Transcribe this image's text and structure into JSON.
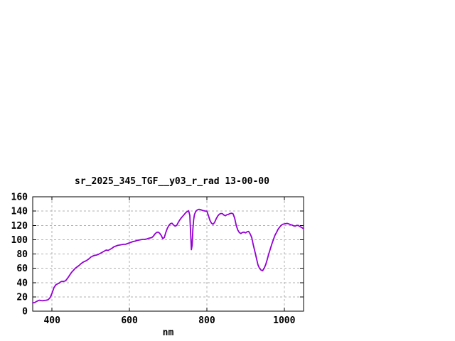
{
  "window": {
    "background": "#ffffff"
  },
  "chart_data": {
    "type": "line",
    "title": "sr_2025_345_TGF__y03_r_rad 13-00-00",
    "xlabel": "nm",
    "ylabel": "",
    "xlim": [
      350,
      1050
    ],
    "ylim": [
      0,
      160
    ],
    "xticks": [
      400,
      600,
      800,
      1000
    ],
    "yticks": [
      0,
      20,
      40,
      60,
      80,
      100,
      120,
      140,
      160
    ],
    "grid": true,
    "legend": "none",
    "line_color": "#9400d3",
    "grid_color": "#b0b0b0",
    "axis_color": "#000000",
    "series": [
      {
        "name": "sr_2025_345_TGF__y03_r_rad",
        "points": [
          [
            350,
            11.5
          ],
          [
            355,
            12
          ],
          [
            360,
            13.5
          ],
          [
            365,
            15
          ],
          [
            368,
            15.3
          ],
          [
            372,
            14.8
          ],
          [
            376,
            14.5
          ],
          [
            380,
            15
          ],
          [
            385,
            15.3
          ],
          [
            390,
            16
          ],
          [
            395,
            19
          ],
          [
            400,
            25
          ],
          [
            405,
            33
          ],
          [
            410,
            37
          ],
          [
            415,
            38.5
          ],
          [
            418,
            39
          ],
          [
            421,
            40.5
          ],
          [
            425,
            41.5
          ],
          [
            430,
            41.5
          ],
          [
            435,
            42.5
          ],
          [
            440,
            46
          ],
          [
            445,
            50
          ],
          [
            450,
            54
          ],
          [
            455,
            57
          ],
          [
            460,
            60
          ],
          [
            465,
            62
          ],
          [
            470,
            64
          ],
          [
            475,
            66.5
          ],
          [
            480,
            68.5
          ],
          [
            484,
            69.5
          ],
          [
            488,
            70.5
          ],
          [
            492,
            72
          ],
          [
            496,
            73.5
          ],
          [
            500,
            75.5
          ],
          [
            505,
            77
          ],
          [
            510,
            78
          ],
          [
            515,
            78.5
          ],
          [
            520,
            79.5
          ],
          [
            525,
            81
          ],
          [
            530,
            82.5
          ],
          [
            535,
            84
          ],
          [
            540,
            85.5
          ],
          [
            545,
            85
          ],
          [
            550,
            86.5
          ],
          [
            555,
            88
          ],
          [
            560,
            90
          ],
          [
            565,
            91
          ],
          [
            570,
            92
          ],
          [
            575,
            92.5
          ],
          [
            580,
            93
          ],
          [
            585,
            93.5
          ],
          [
            590,
            93.5
          ],
          [
            595,
            94.5
          ],
          [
            600,
            95.5
          ],
          [
            605,
            96.5
          ],
          [
            610,
            97.5
          ],
          [
            615,
            98
          ],
          [
            620,
            99
          ],
          [
            625,
            99.5
          ],
          [
            630,
            100
          ],
          [
            635,
            100.5
          ],
          [
            640,
            100.5
          ],
          [
            645,
            101
          ],
          [
            650,
            102
          ],
          [
            654,
            102.5
          ],
          [
            658,
            103
          ],
          [
            662,
            105
          ],
          [
            666,
            108
          ],
          [
            670,
            110
          ],
          [
            674,
            110.5
          ],
          [
            678,
            109
          ],
          [
            682,
            106
          ],
          [
            686,
            101.5
          ],
          [
            690,
            103
          ],
          [
            694,
            110
          ],
          [
            698,
            116
          ],
          [
            702,
            120
          ],
          [
            706,
            122.5
          ],
          [
            710,
            123
          ],
          [
            714,
            120.5
          ],
          [
            718,
            119
          ],
          [
            722,
            120
          ],
          [
            726,
            124
          ],
          [
            730,
            127.5
          ],
          [
            734,
            130.5
          ],
          [
            738,
            133
          ],
          [
            742,
            135.5
          ],
          [
            746,
            138
          ],
          [
            750,
            139.5
          ],
          [
            753,
            140.5
          ],
          [
            756,
            134
          ],
          [
            758,
            110
          ],
          [
            760,
            86
          ],
          [
            762,
            92
          ],
          [
            764,
            115
          ],
          [
            766,
            128
          ],
          [
            768,
            135
          ],
          [
            771,
            139
          ],
          [
            774,
            141
          ],
          [
            777,
            142
          ],
          [
            780,
            142.5
          ],
          [
            784,
            142
          ],
          [
            788,
            141
          ],
          [
            792,
            140.5
          ],
          [
            796,
            140
          ],
          [
            800,
            140
          ],
          [
            804,
            134
          ],
          [
            808,
            127
          ],
          [
            812,
            123
          ],
          [
            816,
            121.5
          ],
          [
            820,
            124
          ],
          [
            824,
            129
          ],
          [
            828,
            133
          ],
          [
            832,
            135.5
          ],
          [
            836,
            136.5
          ],
          [
            840,
            136.5
          ],
          [
            844,
            134.5
          ],
          [
            848,
            133.5
          ],
          [
            852,
            135
          ],
          [
            856,
            135.5
          ],
          [
            860,
            136.5
          ],
          [
            864,
            137
          ],
          [
            868,
            136
          ],
          [
            872,
            130
          ],
          [
            876,
            120
          ],
          [
            880,
            113.5
          ],
          [
            884,
            110
          ],
          [
            888,
            108.5
          ],
          [
            892,
            110
          ],
          [
            896,
            110.5
          ],
          [
            900,
            109.5
          ],
          [
            904,
            111
          ],
          [
            908,
            111.5
          ],
          [
            912,
            108
          ],
          [
            916,
            103
          ],
          [
            920,
            93
          ],
          [
            924,
            84
          ],
          [
            928,
            74.5
          ],
          [
            932,
            65
          ],
          [
            936,
            60
          ],
          [
            940,
            57.5
          ],
          [
            944,
            56.5
          ],
          [
            948,
            60
          ],
          [
            952,
            65
          ],
          [
            956,
            72
          ],
          [
            960,
            80
          ],
          [
            964,
            87
          ],
          [
            968,
            94
          ],
          [
            972,
            100
          ],
          [
            976,
            106
          ],
          [
            980,
            110
          ],
          [
            984,
            114.5
          ],
          [
            988,
            117.5
          ],
          [
            992,
            120
          ],
          [
            996,
            121.5
          ],
          [
            1000,
            122
          ],
          [
            1004,
            122.5
          ],
          [
            1008,
            122.7
          ],
          [
            1012,
            122
          ],
          [
            1016,
            121
          ],
          [
            1020,
            120.5
          ],
          [
            1024,
            119.5
          ],
          [
            1028,
            119
          ],
          [
            1032,
            120
          ],
          [
            1036,
            120
          ],
          [
            1040,
            118.5
          ],
          [
            1044,
            117.5
          ],
          [
            1048,
            116
          ],
          [
            1050,
            115.5
          ]
        ]
      }
    ]
  }
}
